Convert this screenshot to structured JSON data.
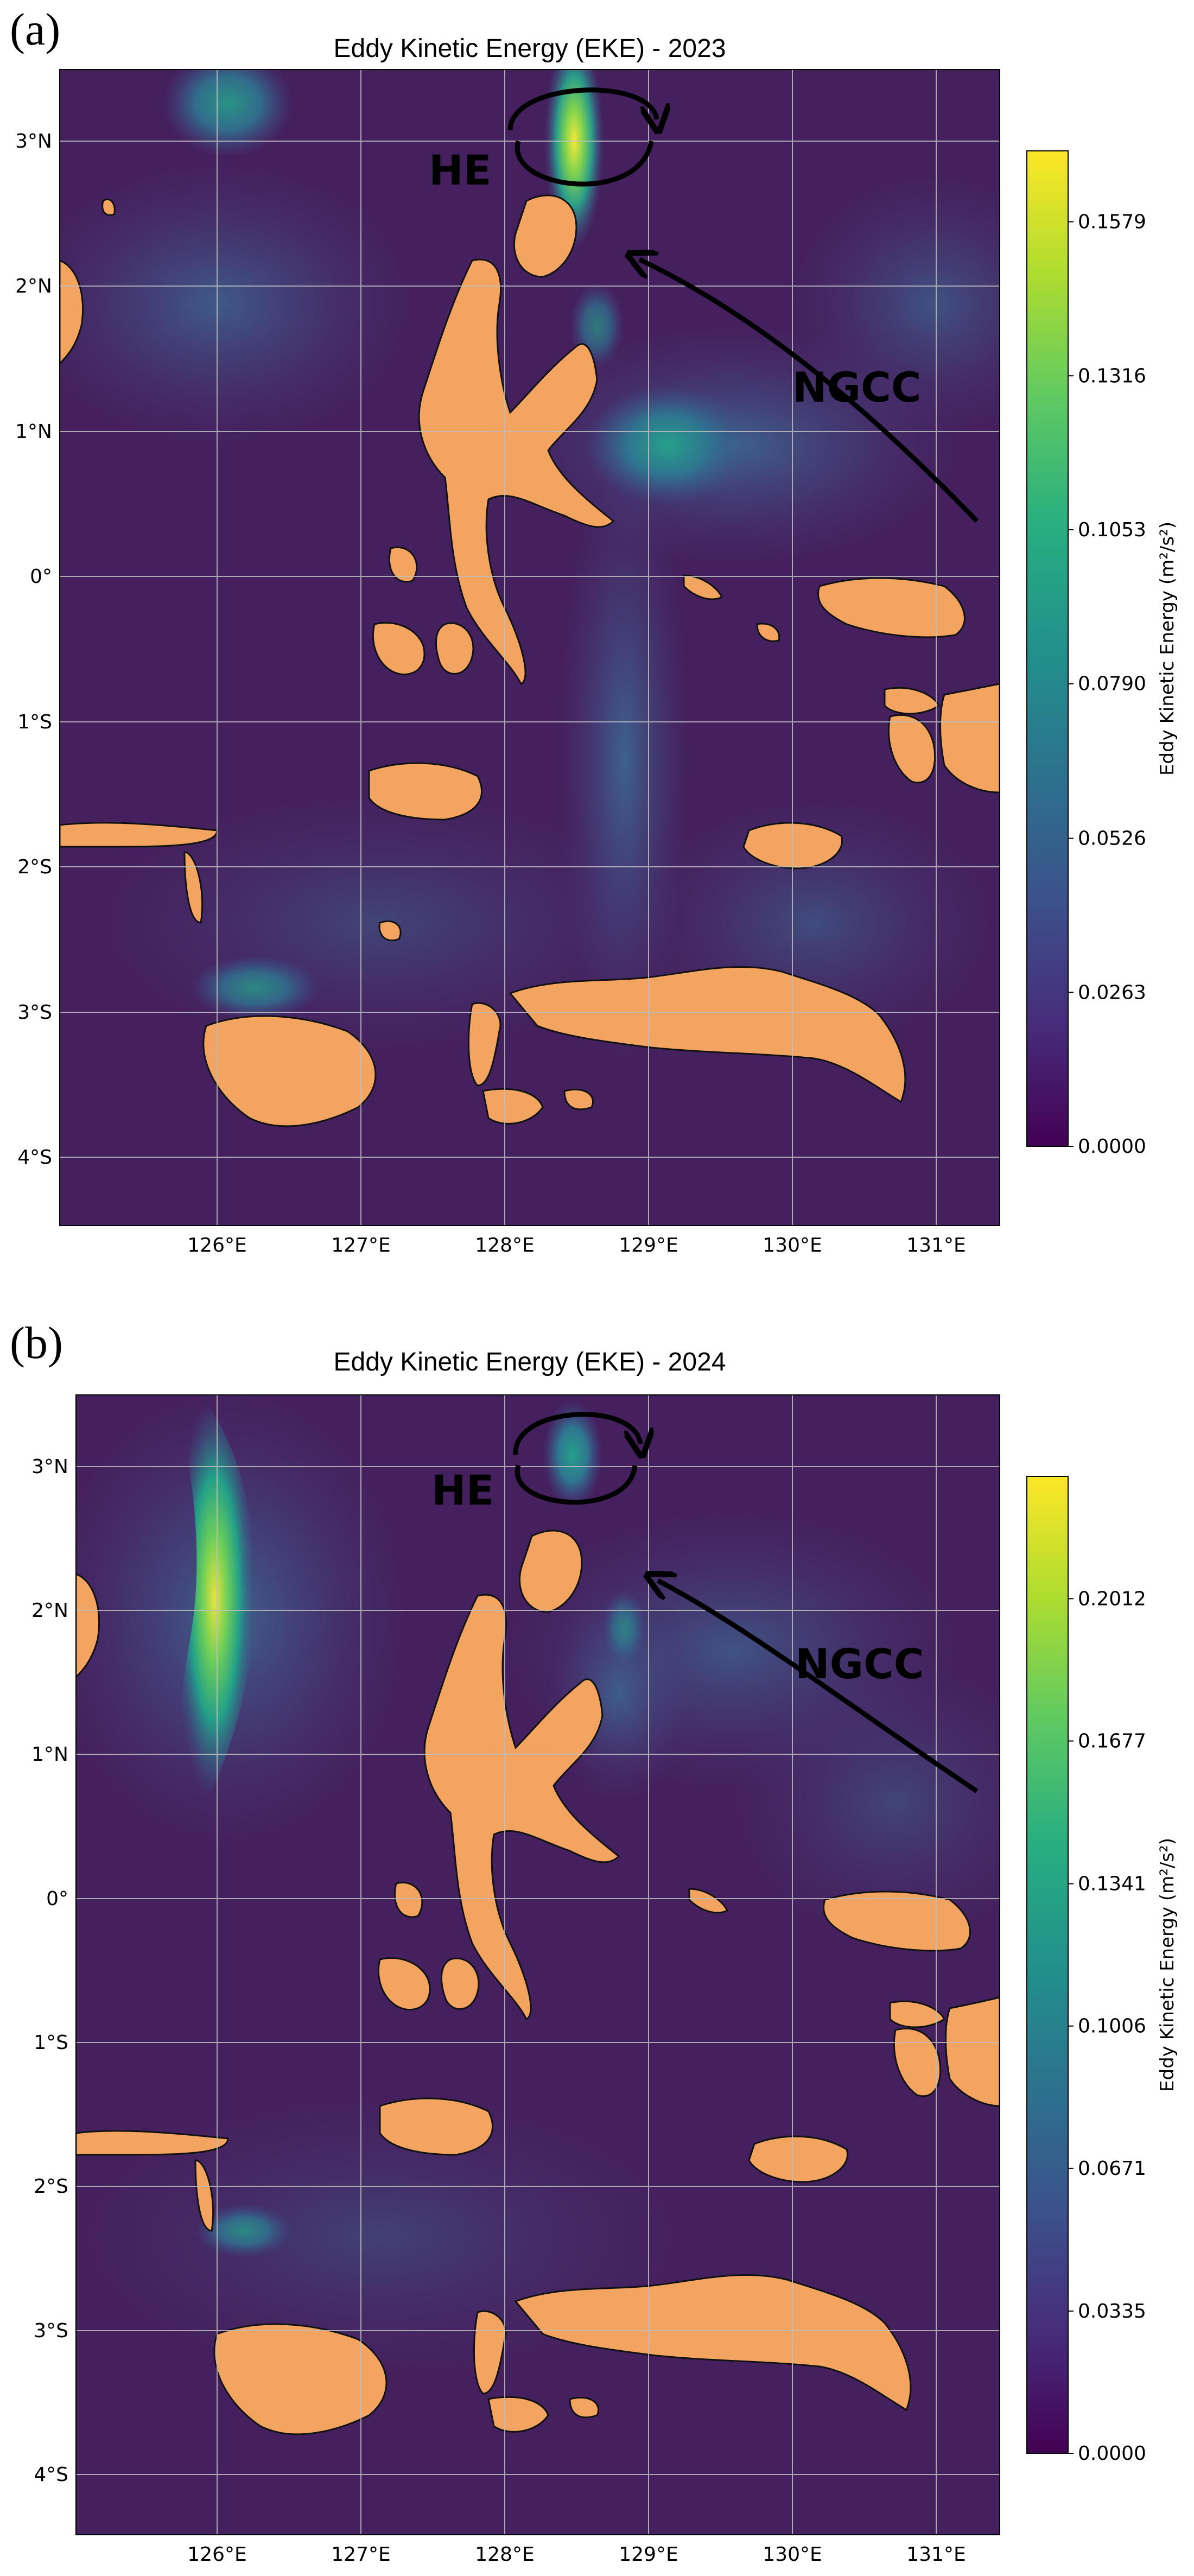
{
  "panels": [
    {
      "letter": "(a)",
      "title": "Eddy Kinetic Energy (EKE) - 2023",
      "colorbar_label": "Eddy Kinetic Energy (m²/s²)",
      "colorbar_ticks": [
        "0.0000",
        "0.0263",
        "0.0526",
        "0.0790",
        "0.1053",
        "0.1316",
        "0.1579"
      ],
      "colorbar_max": 0.17,
      "annotations": {
        "eddy": "HE",
        "current": "NGCC"
      }
    },
    {
      "letter": "(b)",
      "title": "Eddy Kinetic Energy (EKE) - 2024",
      "colorbar_label": "Eddy Kinetic Energy (m²/s²)",
      "colorbar_ticks": [
        "0.0000",
        "0.0335",
        "0.0671",
        "0.1006",
        "0.1341",
        "0.1677",
        "0.2012"
      ],
      "colorbar_max": 0.23,
      "annotations": {
        "eddy": "HE",
        "current": "NGCC"
      }
    }
  ],
  "axes": {
    "lon_ticks": [
      "126°E",
      "127°E",
      "128°E",
      "129°E",
      "130°E",
      "131°E"
    ],
    "lat_ticks": [
      "3°N",
      "2°N",
      "1°N",
      "0°",
      "1°S",
      "2°S",
      "3°S",
      "4°S"
    ]
  },
  "colors": {
    "ocean_base": "#45205e",
    "land": "#f2a460",
    "colormap": [
      "#440154",
      "#472d7b",
      "#3b528b",
      "#2c728e",
      "#21918c",
      "#28ae80",
      "#5ec962",
      "#addc30",
      "#fde725"
    ]
  }
}
